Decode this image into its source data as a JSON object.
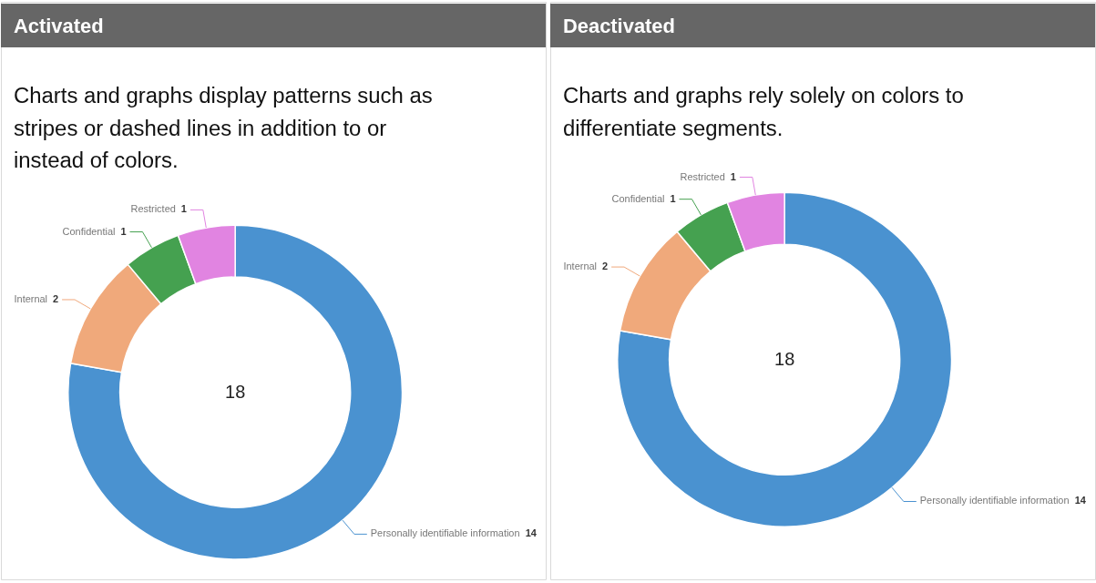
{
  "chart_data": [
    {
      "type": "donut",
      "title": "Activated",
      "subtitle": "Charts and graphs display patterns such as stripes or dashed lines in addition to or instead of colors.",
      "categories": [
        "Personally identifiable information",
        "Internal",
        "Confidential",
        "Restricted"
      ],
      "values": [
        14,
        2,
        1,
        1
      ],
      "colors": [
        "#4a92d0",
        "#f0a97b",
        "#45a150",
        "#e184e1"
      ],
      "data_labels": true,
      "annotations": [
        "18"
      ]
    },
    {
      "type": "donut",
      "title": "Deactivated",
      "subtitle": "Charts and graphs rely solely on colors to differentiate segments.",
      "categories": [
        "Personally identifiable information",
        "Internal",
        "Confidential",
        "Restricted"
      ],
      "values": [
        14,
        2,
        1,
        1
      ],
      "colors": [
        "#4a92d0",
        "#f0a97b",
        "#45a150",
        "#e184e1"
      ],
      "data_labels": true,
      "annotations": [
        "18"
      ]
    }
  ]
}
